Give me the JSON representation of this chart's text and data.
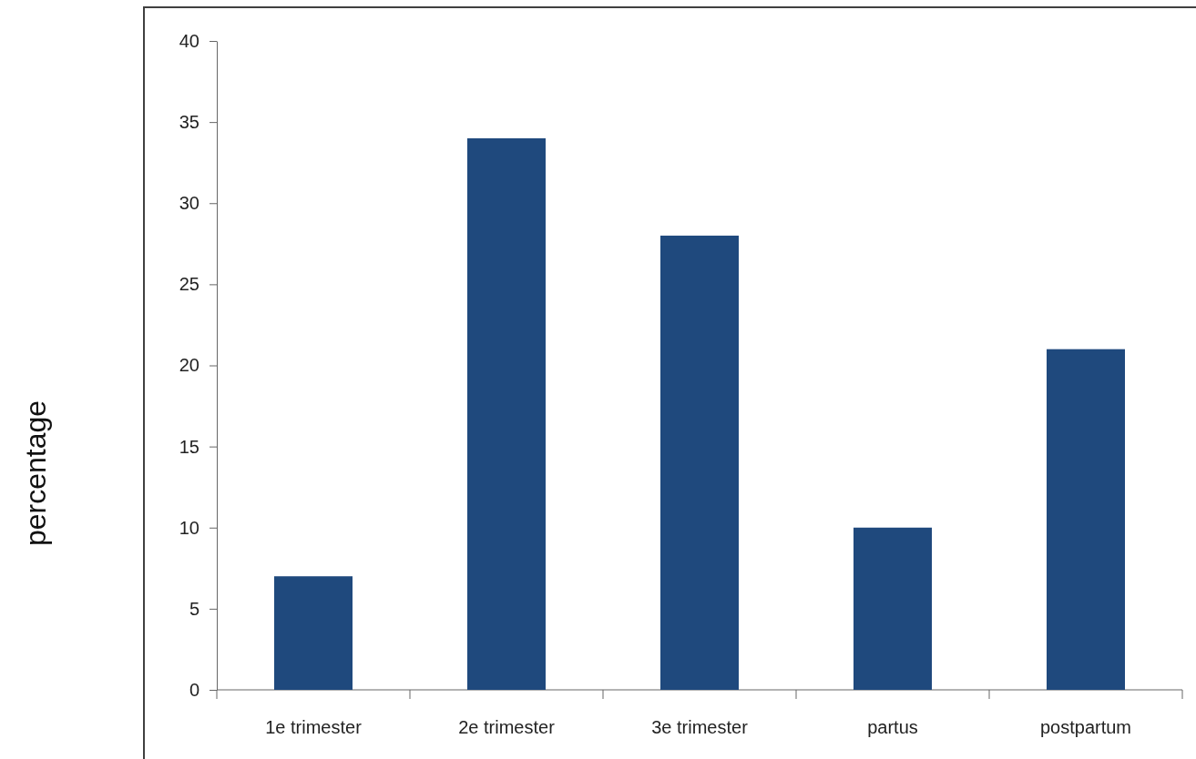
{
  "chart_data": {
    "type": "bar",
    "ylabel": "percentage",
    "categories": [
      "1e trimester",
      "2e trimester",
      "3e trimester",
      "partus",
      "postpartum"
    ],
    "values": [
      7,
      34,
      28,
      10,
      21
    ],
    "color": "#1f497d",
    "ylim": [
      0,
      40
    ],
    "yticks": [
      0,
      5,
      10,
      15,
      20,
      25,
      30,
      35,
      40
    ]
  }
}
